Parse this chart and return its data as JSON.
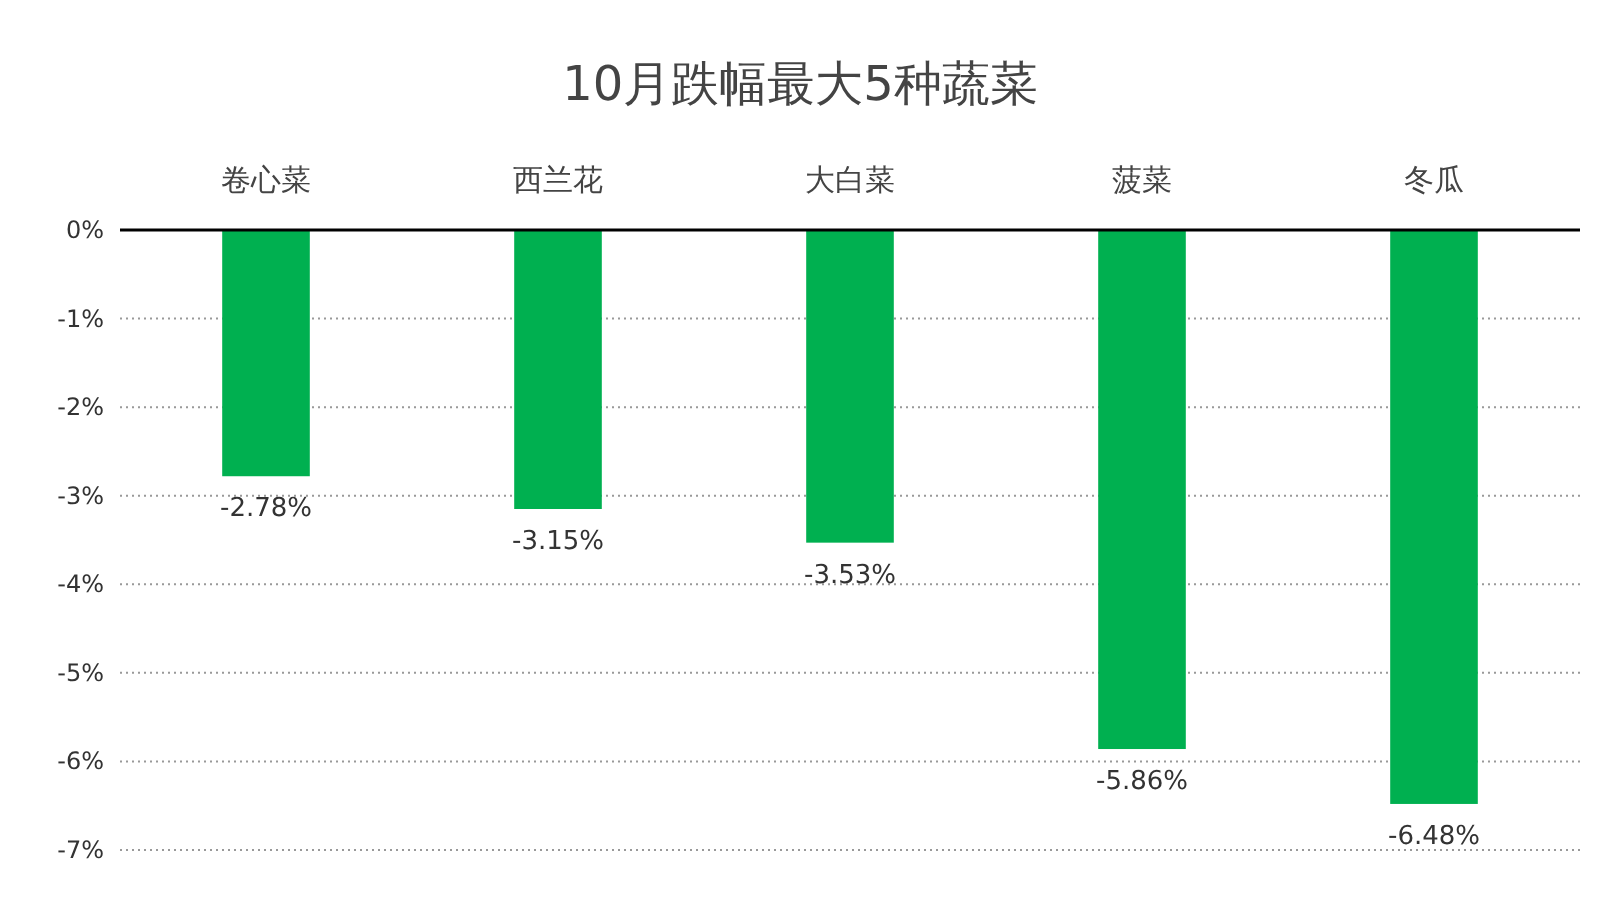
{
  "chart_data": {
    "type": "bar",
    "title": "10月跌幅最大5种蔬菜",
    "categories": [
      "卷心菜",
      "西兰花",
      "大白菜",
      "菠菜",
      "冬瓜"
    ],
    "values": [
      -2.78,
      -3.15,
      -3.53,
      -5.86,
      -6.48
    ],
    "value_labels": [
      "-2.78%",
      "-3.15%",
      "-3.53%",
      "-5.86%",
      "-6.48%"
    ],
    "color": "#00b050",
    "ylim": [
      -7,
      0
    ],
    "yticks": [
      {
        "value": 0,
        "label": "0%"
      },
      {
        "value": -1,
        "label": "-1%"
      },
      {
        "value": -2,
        "label": "-2%"
      },
      {
        "value": -3,
        "label": "-3%"
      },
      {
        "value": -4,
        "label": "-4%"
      },
      {
        "value": -5,
        "label": "-5%"
      },
      {
        "value": -6,
        "label": "-6%"
      },
      {
        "value": -7,
        "label": "-7%"
      }
    ],
    "grid": "y"
  }
}
